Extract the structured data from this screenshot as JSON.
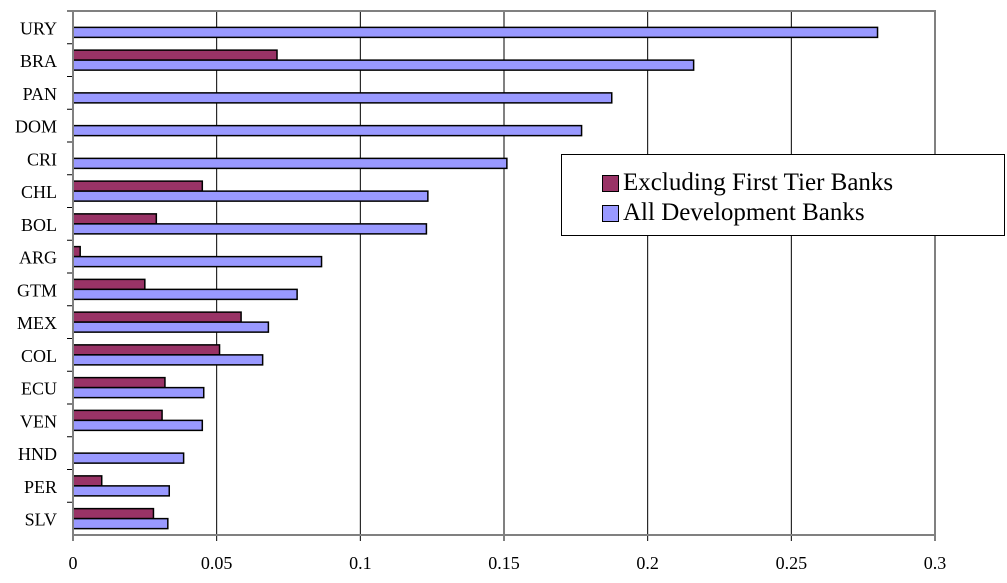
{
  "chart_data": {
    "type": "bar",
    "orientation": "horizontal",
    "title": "",
    "xlabel": "",
    "ylabel": "",
    "categories": [
      "URY",
      "BRA",
      "PAN",
      "DOM",
      "CRI",
      "CHL",
      "BOL",
      "ARG",
      "GTM",
      "MEX",
      "COL",
      "ECU",
      "VEN",
      "HND",
      "PER",
      "SLV"
    ],
    "series": [
      {
        "name": "Excluding First Tier Banks",
        "color": "#993366",
        "values": [
          null,
          0.071,
          null,
          null,
          null,
          0.045,
          0.029,
          0.0025,
          0.025,
          0.0585,
          0.051,
          0.032,
          0.031,
          null,
          0.01,
          0.028
        ]
      },
      {
        "name": "All Development Banks",
        "color": "#9999ff",
        "values": [
          0.28,
          0.216,
          0.1875,
          0.177,
          0.151,
          0.1235,
          0.123,
          0.0865,
          0.078,
          0.068,
          0.066,
          0.0455,
          0.045,
          0.0385,
          0.0335,
          0.033
        ]
      }
    ],
    "xlim": [
      0,
      0.3
    ],
    "xticks": [
      "0",
      "0.05",
      "0.1",
      "0.15",
      "0.2",
      "0.25",
      "0.3"
    ],
    "grid": "vertical",
    "legend_position": "right"
  }
}
